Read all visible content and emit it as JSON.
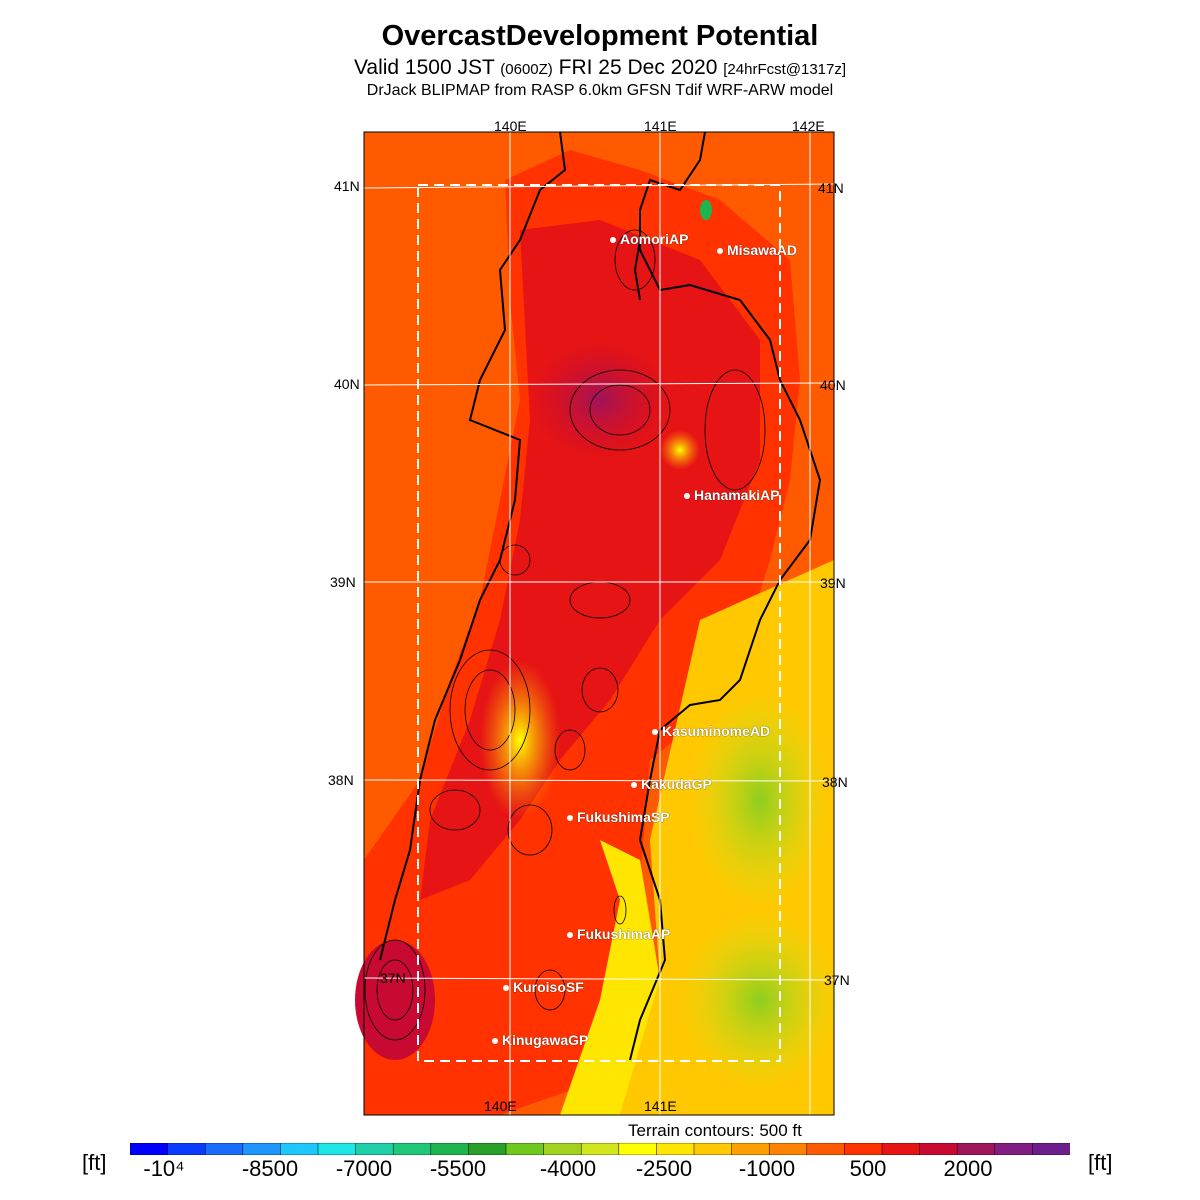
{
  "header": {
    "title": "OvercastDevelopment Potential",
    "valid_prefix": "Valid 1500 JST",
    "utc": "(0600Z)",
    "date": "FRI 25 Dec 2020",
    "forecast": "[24hrFcst@1317z]",
    "model": "DrJack BLIPMAP from RASP 6.0km GFSN Tdif WRF-ARW model"
  },
  "map": {
    "lon_labels": [
      "140E",
      "141E",
      "142E"
    ],
    "lat_labels": [
      "41N",
      "40N",
      "39N",
      "38N",
      "37N"
    ],
    "sites": [
      {
        "name": "AomoriAP"
      },
      {
        "name": "MisawaAD"
      },
      {
        "name": "HanamakiAP"
      },
      {
        "name": "KasuminomeAD"
      },
      {
        "name": "KakudaGP"
      },
      {
        "name": "FukushimaSP"
      },
      {
        "name": "FukushimaAP"
      },
      {
        "name": "KuroisoSF"
      },
      {
        "name": "KinugawaGP"
      }
    ],
    "terrain_note": "Terrain contours: 500 ft"
  },
  "colorbar": {
    "unit": "[ft]",
    "tick_labels": [
      "-10⁴",
      "-8500",
      "-7000",
      "-5500",
      "-4000",
      "-2500",
      "-1000",
      "500",
      "2000"
    ],
    "colors": [
      "#0000ff",
      "#0a3cff",
      "#1a6cff",
      "#1e96ff",
      "#1ec8ff",
      "#1ee6e6",
      "#1ecfa8",
      "#1ec878",
      "#1eb450",
      "#28a028",
      "#6ec81e",
      "#a0d21e",
      "#d2e61e",
      "#ffff00",
      "#ffe600",
      "#ffc800",
      "#ffa000",
      "#ff8200",
      "#ff5a00",
      "#ff3200",
      "#e61414",
      "#c80a32",
      "#a0145a",
      "#821e82",
      "#6e1e8c"
    ]
  }
}
